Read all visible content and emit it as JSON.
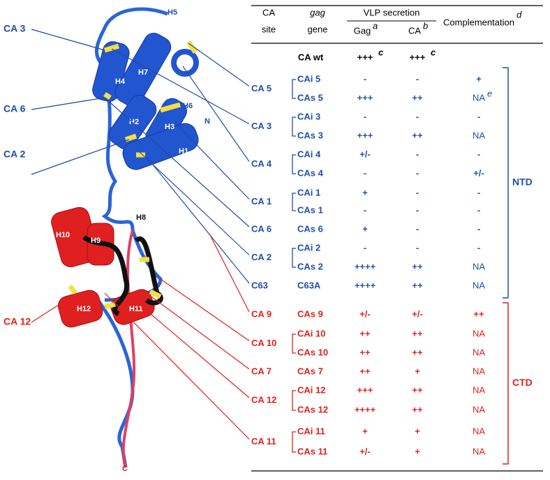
{
  "structure": {
    "labels": [
      {
        "text": "H5"
      },
      {
        "text": "H4"
      },
      {
        "text": "H7"
      },
      {
        "text": "H6"
      },
      {
        "text": "H2"
      },
      {
        "text": "H3"
      },
      {
        "text": "N"
      },
      {
        "text": "H1"
      },
      {
        "text": "H8"
      },
      {
        "text": "H10"
      },
      {
        "text": "H9"
      },
      {
        "text": "H12"
      },
      {
        "text": "H11"
      },
      {
        "text": "C"
      },
      {
        "text": "CA 3"
      },
      {
        "text": "CA 6"
      },
      {
        "text": "CA 2"
      },
      {
        "text": "CA 12"
      }
    ]
  },
  "table": {
    "header": {
      "site": [
        "CA",
        "site"
      ],
      "gene": [
        "gag",
        "gene"
      ],
      "vlp": "VLP secretion",
      "gag": "Gag",
      "gag_sup": "a",
      "ca": "CA",
      "ca_sup": "b",
      "comp": "Complementation",
      "comp_sup": "d"
    },
    "wt": {
      "gene": "CA wt",
      "gag": "+++",
      "gag_sup": "c",
      "ca": "+++",
      "ca_sup": "c"
    },
    "domains": [
      {
        "label": "NTD",
        "color": "#1f4ea8",
        "groups": [
          {
            "site": "CA 5",
            "rows": [
              {
                "gene": "CAi 5",
                "gag": "-",
                "ca": "-",
                "comp": "+"
              },
              {
                "gene": "CAs 5",
                "gag": "+++",
                "ca": "++",
                "comp": "NA",
                "comp_sup": "e"
              }
            ]
          },
          {
            "site": "CA 3",
            "rows": [
              {
                "gene": "CAi 3",
                "gag": "-",
                "ca": "-",
                "comp": "-"
              },
              {
                "gene": "CAs 3",
                "gag": "+++",
                "ca": "++",
                "comp": "NA"
              }
            ]
          },
          {
            "site": "CA 4",
            "rows": [
              {
                "gene": "CAi 4",
                "gag": "+/-",
                "ca": "-",
                "comp": "-"
              },
              {
                "gene": "CAs 4",
                "gag": "-",
                "ca": "-",
                "comp": "+/-"
              }
            ]
          },
          {
            "site": "CA 1",
            "rows": [
              {
                "gene": "CAi 1",
                "gag": "+",
                "ca": "-",
                "comp": "-"
              },
              {
                "gene": "CAs 1",
                "gag": "-",
                "ca": "-",
                "comp": "-"
              }
            ]
          },
          {
            "site": "CA 6",
            "rows": [
              {
                "gene": "CAs 6",
                "gag": "+",
                "ca": "-",
                "comp": "-"
              }
            ]
          },
          {
            "site": "CA 2",
            "rows": [
              {
                "gene": "CAi 2",
                "gag": "-",
                "ca": "-",
                "comp": "-"
              },
              {
                "gene": "CAs 2",
                "gag": "++++",
                "ca": "++",
                "comp": "NA"
              }
            ]
          },
          {
            "site": "C63",
            "rows": [
              {
                "gene": "C63A",
                "gag": "++++",
                "ca": "++",
                "comp": "NA"
              }
            ]
          }
        ]
      },
      {
        "label": "CTD",
        "color": "#e0201b",
        "groups": [
          {
            "site": "CA 9",
            "rows": [
              {
                "gene": "CAs 9",
                "gag": "+/-",
                "ca": "+/-",
                "comp": "++"
              }
            ]
          },
          {
            "site": "CA 10",
            "rows": [
              {
                "gene": "CAi 10",
                "gag": "++",
                "ca": "++",
                "comp": "NA"
              },
              {
                "gene": "CAs 10",
                "gag": "++",
                "ca": "++",
                "comp": "NA"
              }
            ]
          },
          {
            "site": "CA 7",
            "rows": [
              {
                "gene": "CAs 7",
                "gag": "++",
                "ca": "+",
                "comp": "NA"
              }
            ]
          },
          {
            "site": "CA 12",
            "rows": [
              {
                "gene": "CAi 12",
                "gag": "+++",
                "ca": "++",
                "comp": "NA"
              },
              {
                "gene": "CAs 12",
                "gag": "++++",
                "ca": "++",
                "comp": "NA"
              }
            ]
          },
          {
            "site": "CA 11",
            "rows": [
              {
                "gene": "CAi 11",
                "gag": "+",
                "ca": "+",
                "comp": "NA"
              },
              {
                "gene": "CAs 11",
                "gag": "+/-",
                "ca": "+",
                "comp": "NA"
              }
            ]
          }
        ]
      }
    ]
  }
}
